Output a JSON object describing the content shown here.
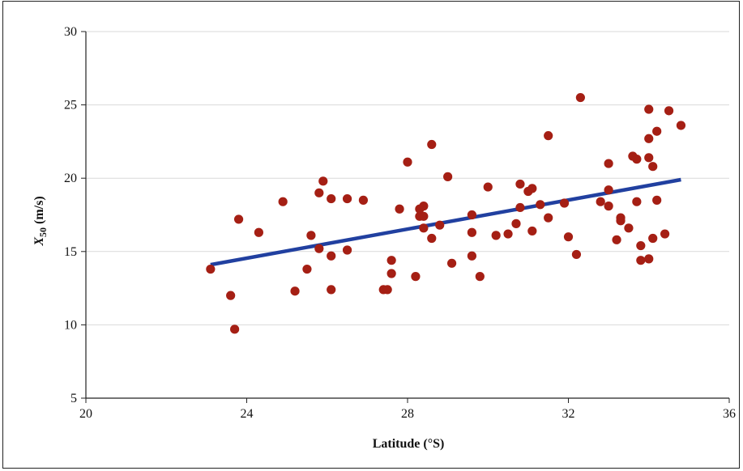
{
  "chart_data": {
    "type": "scatter",
    "xlabel": "Latitude (°S)",
    "ylabel_main": "X",
    "ylabel_sub": "50",
    "ylabel_unit": " (m/s)",
    "xlim": [
      20,
      36
    ],
    "ylim": [
      5,
      30
    ],
    "xticks": [
      20,
      24,
      28,
      32,
      36
    ],
    "yticks": [
      5,
      10,
      15,
      20,
      25,
      30
    ],
    "grid": "horizontal",
    "legend": "none",
    "colors": {
      "points": "#a51f14",
      "trend": "#2140a0",
      "grid": "#d9d9d9",
      "axis": "#222222"
    },
    "series": [
      {
        "type": "scatter",
        "points": [
          [
            23.1,
            13.8
          ],
          [
            23.6,
            12.0
          ],
          [
            23.7,
            9.7
          ],
          [
            23.8,
            17.2
          ],
          [
            24.3,
            16.3
          ],
          [
            24.9,
            18.4
          ],
          [
            25.2,
            12.3
          ],
          [
            25.5,
            13.8
          ],
          [
            25.6,
            16.1
          ],
          [
            25.8,
            19.0
          ],
          [
            25.8,
            15.2
          ],
          [
            25.9,
            19.8
          ],
          [
            26.1,
            18.6
          ],
          [
            26.1,
            14.7
          ],
          [
            26.1,
            12.4
          ],
          [
            26.5,
            18.6
          ],
          [
            26.5,
            15.1
          ],
          [
            26.9,
            18.5
          ],
          [
            27.4,
            12.4
          ],
          [
            27.5,
            12.4
          ],
          [
            27.6,
            14.4
          ],
          [
            27.6,
            13.5
          ],
          [
            27.8,
            17.9
          ],
          [
            28.0,
            21.1
          ],
          [
            28.2,
            13.3
          ],
          [
            28.3,
            17.4
          ],
          [
            28.3,
            17.9
          ],
          [
            28.4,
            18.1
          ],
          [
            28.4,
            17.4
          ],
          [
            28.4,
            16.6
          ],
          [
            28.6,
            22.3
          ],
          [
            28.6,
            15.9
          ],
          [
            28.8,
            16.8
          ],
          [
            29.0,
            20.1
          ],
          [
            29.1,
            14.2
          ],
          [
            29.6,
            17.5
          ],
          [
            29.6,
            16.3
          ],
          [
            29.6,
            14.7
          ],
          [
            29.8,
            13.3
          ],
          [
            30.0,
            19.4
          ],
          [
            30.2,
            16.1
          ],
          [
            30.5,
            16.2
          ],
          [
            30.7,
            16.9
          ],
          [
            30.8,
            19.6
          ],
          [
            30.8,
            18.0
          ],
          [
            31.0,
            19.1
          ],
          [
            31.1,
            19.3
          ],
          [
            31.1,
            16.4
          ],
          [
            31.3,
            18.2
          ],
          [
            31.5,
            17.3
          ],
          [
            31.5,
            22.9
          ],
          [
            31.9,
            18.3
          ],
          [
            32.0,
            16.0
          ],
          [
            32.2,
            14.8
          ],
          [
            32.3,
            25.5
          ],
          [
            32.8,
            18.4
          ],
          [
            33.0,
            21.0
          ],
          [
            33.0,
            19.2
          ],
          [
            33.0,
            18.1
          ],
          [
            33.2,
            15.8
          ],
          [
            33.3,
            17.3
          ],
          [
            33.3,
            17.1
          ],
          [
            33.5,
            16.6
          ],
          [
            33.6,
            21.5
          ],
          [
            33.7,
            21.3
          ],
          [
            33.7,
            18.4
          ],
          [
            33.8,
            15.4
          ],
          [
            33.8,
            14.4
          ],
          [
            34.0,
            24.7
          ],
          [
            34.0,
            22.7
          ],
          [
            34.0,
            21.4
          ],
          [
            34.0,
            14.5
          ],
          [
            34.1,
            20.8
          ],
          [
            34.1,
            15.9
          ],
          [
            34.2,
            23.2
          ],
          [
            34.2,
            18.5
          ],
          [
            34.4,
            16.2
          ],
          [
            34.5,
            24.6
          ],
          [
            34.8,
            23.6
          ]
        ]
      },
      {
        "type": "line",
        "points": [
          [
            23.1,
            14.1
          ],
          [
            34.8,
            19.9
          ]
        ]
      }
    ]
  }
}
